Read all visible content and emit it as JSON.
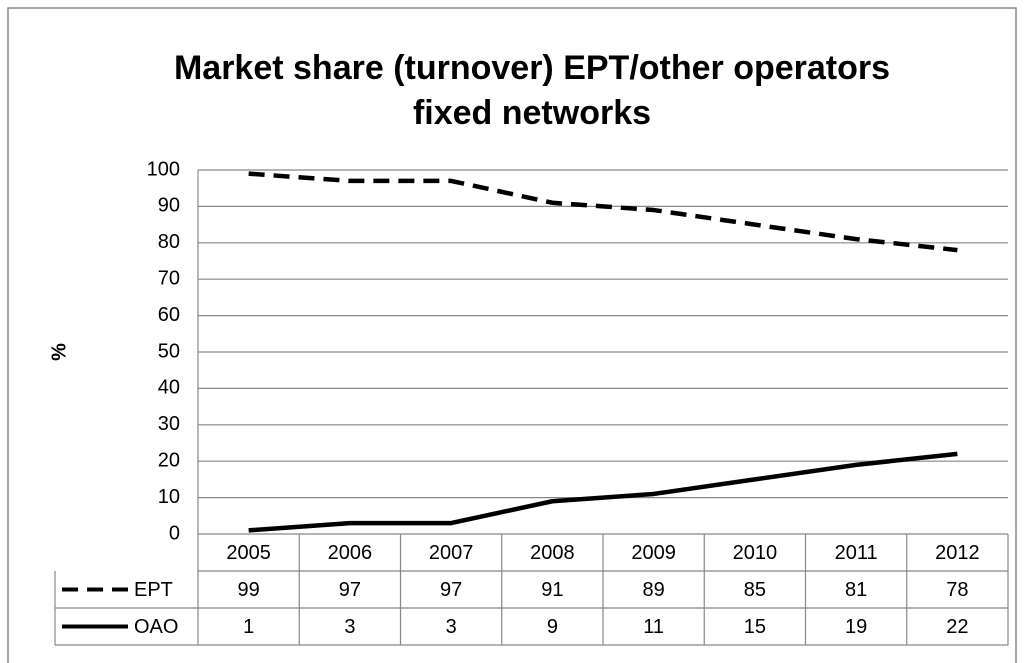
{
  "chart_data": {
    "type": "line",
    "title": [
      "Market share (turnover) EPT/other operators",
      "fixed networks"
    ],
    "y_label": "%",
    "categories": [
      "2005",
      "2006",
      "2007",
      "2008",
      "2009",
      "2010",
      "2011",
      "2012"
    ],
    "series": [
      {
        "name": "EPT",
        "color": "#000000",
        "dash": "dashed",
        "values": [
          99,
          97,
          97,
          91,
          89,
          85,
          81,
          78
        ]
      },
      {
        "name": "OAO",
        "color": "#000000",
        "dash": "solid",
        "values": [
          1,
          3,
          3,
          9,
          11,
          15,
          19,
          22
        ]
      }
    ],
    "ylim": [
      0,
      100
    ],
    "yticks": [
      0,
      10,
      20,
      30,
      40,
      50,
      60,
      70,
      80,
      90,
      100
    ],
    "grid": true,
    "data_table": true
  }
}
